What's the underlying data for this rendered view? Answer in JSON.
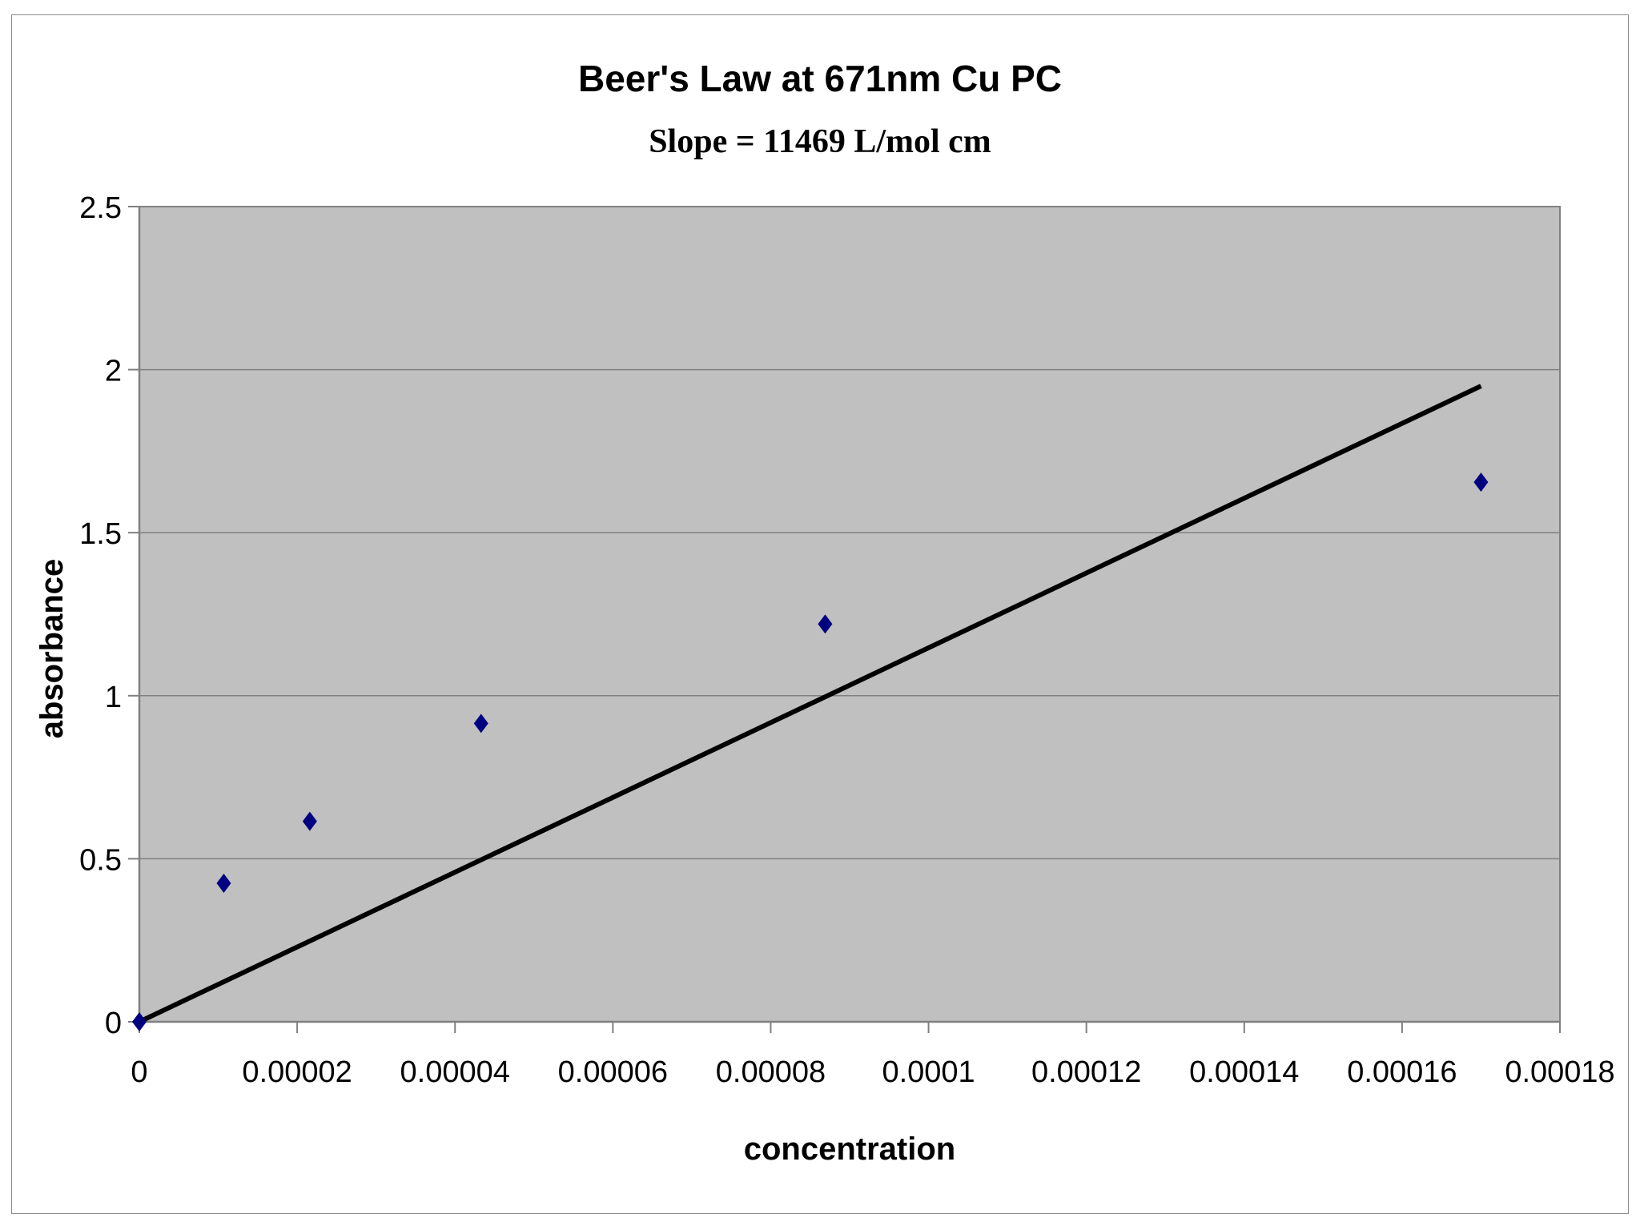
{
  "chart_data": {
    "type": "scatter",
    "title": "Beer's Law at 671nm Cu PC",
    "subtitle": "Slope = 11469 L/mol cm",
    "xlabel": "concentration",
    "ylabel": "absorbance",
    "xlim": [
      0,
      0.00018
    ],
    "ylim": [
      0,
      2.5
    ],
    "x_ticks": [
      "0",
      "0.00002",
      "0.00004",
      "0.00006",
      "0.00008",
      "0.0001",
      "0.00012",
      "0.00014",
      "0.00016",
      "0.00018"
    ],
    "x_tick_values": [
      0,
      2e-05,
      4e-05,
      6e-05,
      8e-05,
      0.0001,
      0.00012,
      0.00014,
      0.00016,
      0.00018
    ],
    "y_ticks": [
      "0",
      "0.5",
      "1",
      "1.5",
      "2",
      "2.5"
    ],
    "y_tick_values": [
      0,
      0.5,
      1,
      1.5,
      2,
      2.5
    ],
    "grid": "horizontal",
    "legend": "none",
    "series": [
      {
        "marker": "diamond",
        "color": "#000080",
        "points": [
          {
            "x": 0,
            "y": 0
          },
          {
            "x": 1.07e-05,
            "y": 0.425
          },
          {
            "x": 2.16e-05,
            "y": 0.615
          },
          {
            "x": 4.33e-05,
            "y": 0.915
          },
          {
            "x": 8.69e-05,
            "y": 1.22
          },
          {
            "x": 0.00017,
            "y": 1.655
          }
        ]
      }
    ],
    "trendline": {
      "slope": 11469,
      "intercept": 0,
      "x_range": [
        0,
        0.00017
      ],
      "color": "#000000"
    },
    "colors": {
      "plot_background": "#c0c0c0",
      "gridline": "#808080",
      "frame_border": "#8c8c8c"
    }
  }
}
